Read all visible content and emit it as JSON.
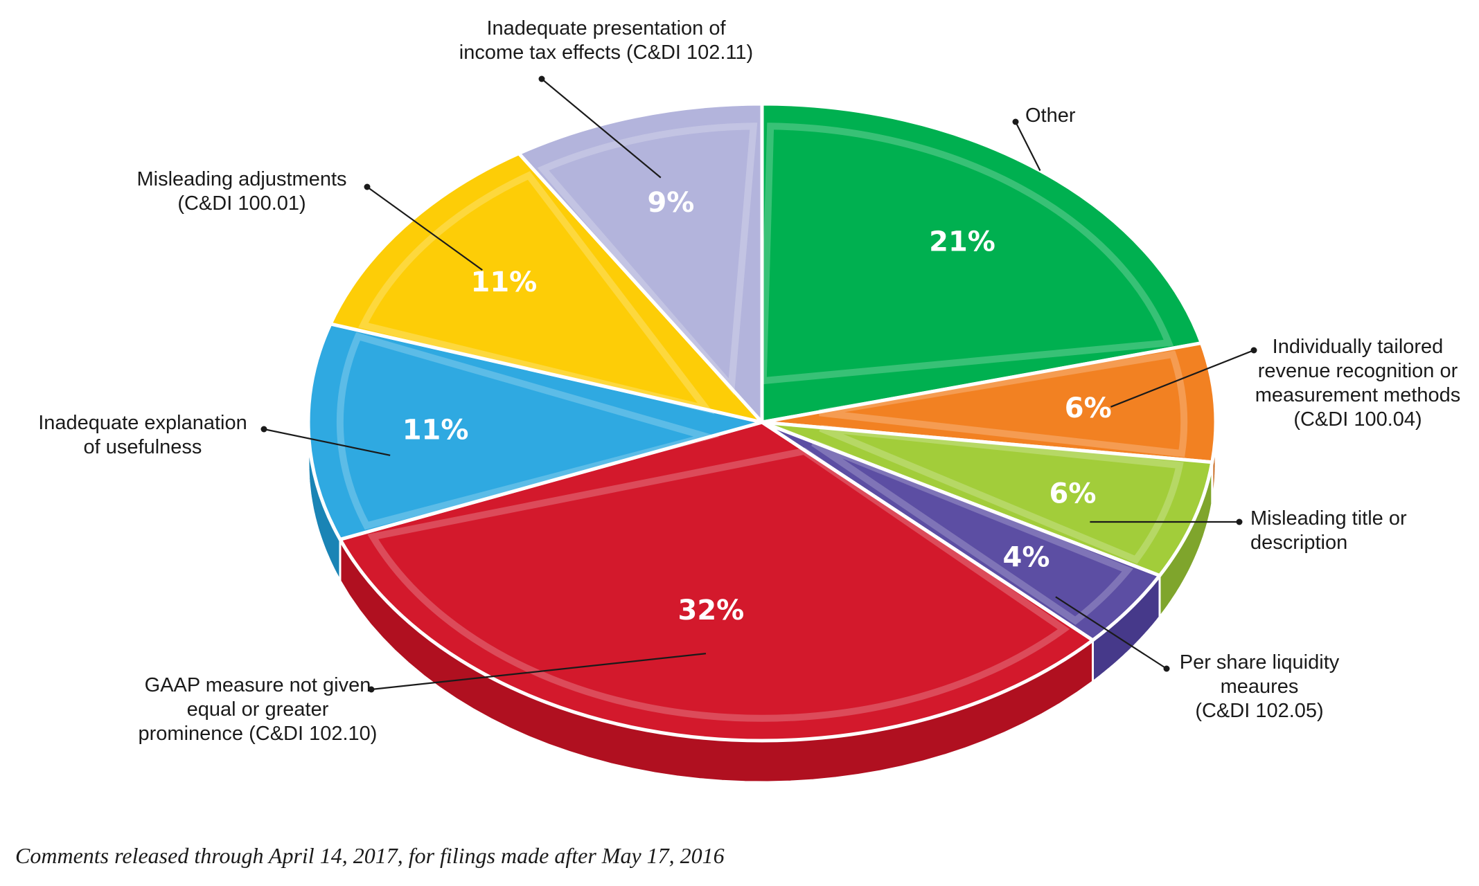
{
  "chart_data": {
    "type": "pie",
    "style": "3d-exploded",
    "slices": [
      {
        "label": "Other",
        "value": 21,
        "value_label": "21%",
        "color": "#00b050",
        "side_color": "#008a3d",
        "label_lines": [
          "Other"
        ],
        "ext": 1.0
      },
      {
        "label": "Individually tailored revenue recognition or measurement methods (C&DI 100.04)",
        "value": 6,
        "value_label": "6%",
        "color": "#f28122",
        "side_color": "#c8661a",
        "label_lines": [
          "Individually tailored",
          "revenue recognition or",
          "measurement methods",
          "(C&DI 100.04)"
        ],
        "ext": 0.77
      },
      {
        "label": "Misleading title or description",
        "value": 6,
        "value_label": "6%",
        "color": "#a2cd3a",
        "side_color": "#7fa52c",
        "label_lines": [
          "Misleading title or",
          "description"
        ],
        "ext": 0.76
      },
      {
        "label": "Per share liquidity meaures (C&DI 102.05)",
        "value": 4,
        "value_label": "4%",
        "color": "#5c4ea3",
        "side_color": "#46398a",
        "label_lines": [
          "Per share liquidity",
          "meaures",
          "(C&DI 102.05)"
        ],
        "ext": 0.8
      },
      {
        "label": "GAAP measure not given equal or greater prominence (C&DI 102.10)",
        "value": 32,
        "value_label": "32%",
        "color": "#d3192c",
        "side_color": "#b01020",
        "label_lines": [
          "GAAP measure not given",
          "equal or greater",
          "prominence (C&DI 102.10)"
        ],
        "ext": 0.66
      },
      {
        "label": "Inadequate explanation of usefulness",
        "value": 11,
        "value_label": "11%",
        "color": "#2fa9e1",
        "side_color": "#1a84b5",
        "label_lines": [
          "Inadequate explanation",
          "of usefulness"
        ],
        "ext": 0.82
      },
      {
        "label": "Misleading adjustments (C&DI 100.01)",
        "value": 11,
        "value_label": "11%",
        "color": "#fdcd07",
        "side_color": "#d4a800",
        "label_lines": [
          "Misleading adjustments",
          "(C&DI 100.01)"
        ],
        "ext": 0.78
      },
      {
        "label": "Inadequate presentation of income tax effects (C&DI 102.11)",
        "value": 9,
        "value_label": "9%",
        "color": "#b3b4dc",
        "side_color": "#9193c0",
        "label_lines": [
          "Inadequate presentation of",
          "income tax effects (C&DI 102.11)"
        ],
        "ext": 0.8
      }
    ],
    "legend": "none"
  },
  "caption": "Comments released through April 14, 2017, for filings made after May 17, 2016"
}
